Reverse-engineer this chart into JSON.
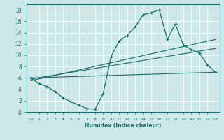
{
  "xlabel": "Humidex (Indice chaleur)",
  "ylabel": "",
  "bg_color": "#cce8e8",
  "grid_color": "#ffffff",
  "line_color": "#1a6b6b",
  "xlim": [
    -0.5,
    23.5
  ],
  "ylim": [
    0,
    19
  ],
  "xticks": [
    0,
    1,
    2,
    3,
    4,
    5,
    6,
    7,
    8,
    9,
    10,
    11,
    12,
    13,
    14,
    15,
    16,
    17,
    18,
    19,
    20,
    21,
    22,
    23
  ],
  "yticks": [
    0,
    2,
    4,
    6,
    8,
    10,
    12,
    14,
    16,
    18
  ],
  "curve_x": [
    0,
    1,
    2,
    3,
    4,
    5,
    6,
    7,
    8,
    9,
    10,
    11,
    12,
    13,
    14,
    15,
    16,
    17,
    18,
    19,
    20,
    21,
    22,
    23
  ],
  "curve_y": [
    6.0,
    5.0,
    4.5,
    3.6,
    2.5,
    1.8,
    1.2,
    0.6,
    0.5,
    3.2,
    9.8,
    12.5,
    13.5,
    15.0,
    17.2,
    17.5,
    18.0,
    12.8,
    15.5,
    11.8,
    11.0,
    10.4,
    8.3,
    7.0
  ],
  "line1_x": [
    0,
    23
  ],
  "line1_y": [
    6.0,
    7.0
  ],
  "line2_x": [
    0,
    23
  ],
  "line2_y": [
    5.8,
    11.2
  ],
  "line3_x": [
    0,
    23
  ],
  "line3_y": [
    5.5,
    12.8
  ]
}
